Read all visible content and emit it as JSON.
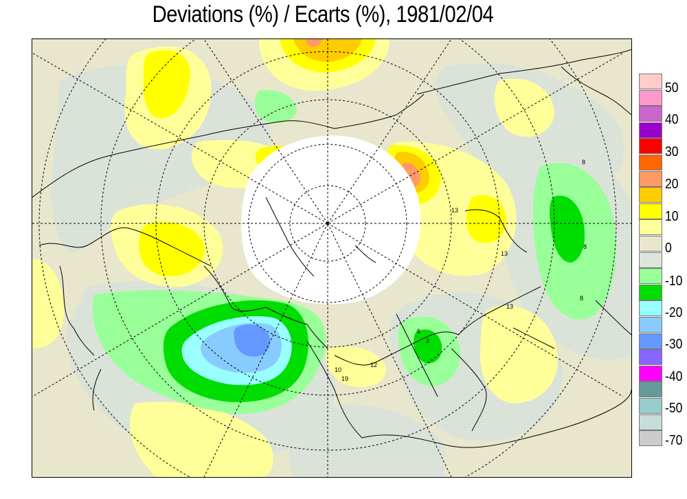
{
  "title": "Deviations (%) / Ecarts (%), 1981/02/04",
  "legend": {
    "swatches": [
      {
        "color": "#ffcccc"
      },
      {
        "color": "#ff99cc"
      },
      {
        "color": "#cc66cc"
      },
      {
        "color": "#9900cc"
      },
      {
        "color": "#ff0000"
      },
      {
        "color": "#ff6600"
      },
      {
        "color": "#ff9966"
      },
      {
        "color": "#ffcc00"
      },
      {
        "color": "#ffff00"
      },
      {
        "color": "#ffff99"
      },
      {
        "color": "#e8e6cc"
      },
      {
        "color": "#dde6dd"
      },
      {
        "color": "#99ff99"
      },
      {
        "color": "#00dd00"
      },
      {
        "color": "#99ffff"
      },
      {
        "color": "#88ccff"
      },
      {
        "color": "#6699ff"
      },
      {
        "color": "#8866ff"
      },
      {
        "color": "#ff00ff"
      },
      {
        "color": "#669999"
      },
      {
        "color": "#99cccc"
      },
      {
        "color": "#c8dcd8"
      },
      {
        "color": "#cccccc"
      }
    ],
    "labels": [
      "50",
      "40",
      "30",
      "20",
      "10",
      "0",
      "-10",
      "-20",
      "-30",
      "-40",
      "-50",
      "-70"
    ]
  },
  "map_labels": [
    "13",
    "13",
    "13",
    "8",
    "8",
    "8",
    "19",
    "10",
    "12",
    "6",
    "3"
  ],
  "colors": {
    "background": "#e8e6cc",
    "neutral_negative": "#dde6dd",
    "no_data": "#ffffff"
  }
}
